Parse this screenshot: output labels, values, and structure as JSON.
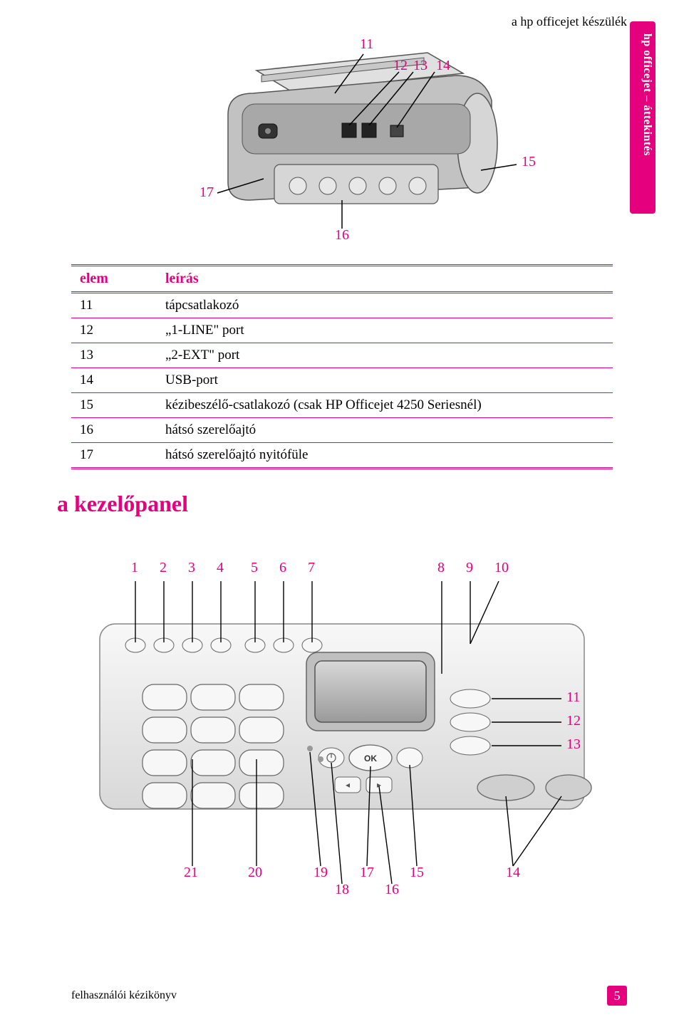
{
  "header": "a hp officejet készülék",
  "side_tab": "hp officejet – áttekintés",
  "diagram1": {
    "callouts": {
      "11": "11",
      "12": "12",
      "13": "13",
      "14": "14",
      "15": "15",
      "16": "16",
      "17": "17"
    }
  },
  "table": {
    "headers": {
      "elem": "elem",
      "leiras": "leírás"
    },
    "rows": [
      {
        "n": "11",
        "t": "tápcsatlakozó"
      },
      {
        "n": "12",
        "t": "„1-LINE\" port"
      },
      {
        "n": "13",
        "t": "„2-EXT\" port"
      },
      {
        "n": "14",
        "t": "USB-port"
      },
      {
        "n": "15",
        "t": "kézibeszélő-csatlakozó (csak HP Officejet 4250 Seriesnél)"
      },
      {
        "n": "16",
        "t": "hátsó szerelőajtó"
      },
      {
        "n": "17",
        "t": "hátsó szerelőajtó nyitófüle"
      }
    ]
  },
  "section2_title": "a kezelőpanel",
  "diagram2": {
    "top_labels": [
      "1",
      "2",
      "3",
      "4",
      "5",
      "6",
      "7",
      "8",
      "9",
      "10"
    ],
    "right_labels": [
      "11",
      "12",
      "13"
    ],
    "bottom_labels": [
      "21",
      "20",
      "19",
      "18",
      "17",
      "16",
      "15",
      "14"
    ]
  },
  "footer_left": "felhasználói kézikönyv",
  "page_number": "5",
  "colors": {
    "accent": "#e5007e",
    "printer_body": "#b8b8b8",
    "printer_dark": "#888888",
    "printer_light": "#e0e0e0",
    "panel_bg": "#efefef",
    "panel_edge": "#cfcfcf",
    "display_bg": "#b5b5b5",
    "button_face": "#f7f7f7"
  }
}
